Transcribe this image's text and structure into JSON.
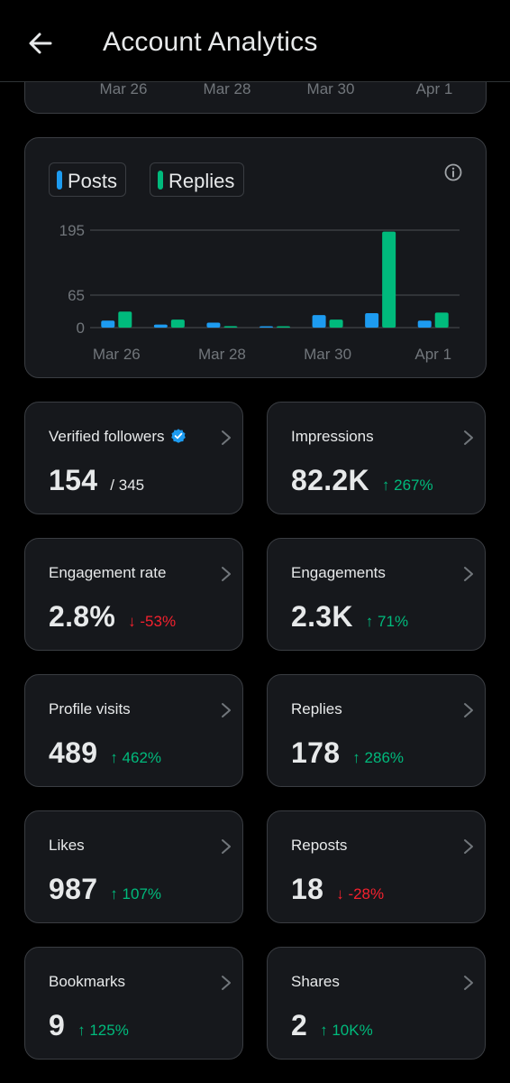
{
  "header": {
    "title": "Account Analytics"
  },
  "colors": {
    "posts": "#1d9bf0",
    "replies": "#00ba7c",
    "up": "#00ba7c",
    "down": "#f4212e"
  },
  "top_chart": {
    "x_labels": [
      "Mar 26",
      "Mar 28",
      "Mar 30",
      "Apr 1"
    ]
  },
  "legend": {
    "posts_label": "Posts",
    "replies_label": "Replies"
  },
  "chart_data": {
    "type": "bar",
    "categories": [
      "Mar 26",
      "Mar 27",
      "Mar 28",
      "Mar 29",
      "Mar 30",
      "Mar 31",
      "Apr 1"
    ],
    "x_tick_labels": [
      "Mar 26",
      "Mar 28",
      "Mar 30",
      "Apr 1"
    ],
    "y_ticks": [
      0,
      65,
      195
    ],
    "ylim": [
      0,
      200
    ],
    "grid": true,
    "legend_position": "top-left",
    "series": [
      {
        "name": "Posts",
        "values": [
          14,
          6,
          10,
          1,
          25,
          29,
          14
        ]
      },
      {
        "name": "Replies",
        "values": [
          32,
          16,
          3,
          1,
          16,
          192,
          30
        ]
      }
    ]
  },
  "stats": [
    {
      "label": "Verified followers",
      "value": "154",
      "sub": "/ 345",
      "verified": true
    },
    {
      "label": "Impressions",
      "value": "82.2K",
      "change": "267%",
      "dir": "up"
    },
    {
      "label": "Engagement rate",
      "value": "2.8%",
      "change": "-53%",
      "dir": "down"
    },
    {
      "label": "Engagements",
      "value": "2.3K",
      "change": "71%",
      "dir": "up"
    },
    {
      "label": "Profile visits",
      "value": "489",
      "change": "462%",
      "dir": "up"
    },
    {
      "label": "Replies",
      "value": "178",
      "change": "286%",
      "dir": "up"
    },
    {
      "label": "Likes",
      "value": "987",
      "change": "107%",
      "dir": "up"
    },
    {
      "label": "Reposts",
      "value": "18",
      "change": "-28%",
      "dir": "down"
    },
    {
      "label": "Bookmarks",
      "value": "9",
      "change": "125%",
      "dir": "up"
    },
    {
      "label": "Shares",
      "value": "2",
      "change": "10K%",
      "dir": "up"
    }
  ]
}
